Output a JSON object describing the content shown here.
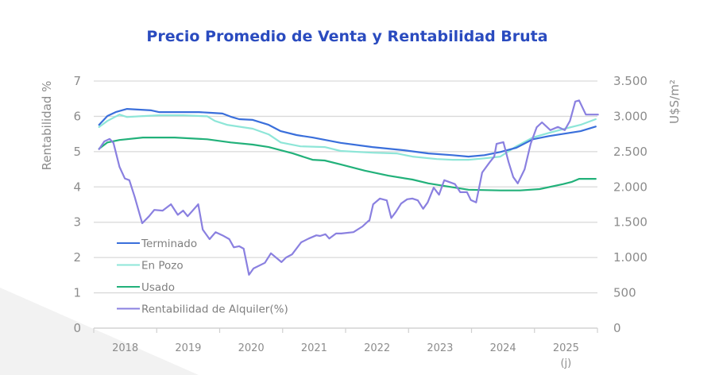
{
  "chart_data": {
    "type": "line",
    "title": "Precio Promedio de Venta y Rentabilidad Bruta",
    "xlabel": "",
    "x_ticks": [
      "2018",
      "2019",
      "2020",
      "2021",
      "2022",
      "2023",
      "2024",
      "2025"
    ],
    "x_tick_suffix_last": "(j)",
    "xlim": [
      2018.0,
      2024.65
    ],
    "y_left": {
      "label": "Rentabilidad %",
      "ticks": [
        "0",
        "1",
        "2",
        "3",
        "4",
        "5",
        "6",
        "7"
      ],
      "ylim": [
        0,
        7
      ]
    },
    "y_right": {
      "label": "U$S/m²",
      "ticks": [
        "0",
        "500",
        "1.000",
        "1.500",
        "2.000",
        "2.500",
        "3.000",
        "3.500"
      ],
      "ylim": [
        0,
        3500
      ]
    },
    "grid": true,
    "legend_position": "bottom-left",
    "series": [
      {
        "name": "Terminado",
        "axis": "right",
        "color": "#3a6fdb",
        "x": [
          2018.07,
          2018.18,
          2018.29,
          2018.44,
          2018.76,
          2018.86,
          2019.39,
          2019.55,
          2019.7,
          2019.81,
          2019.92,
          2020.1,
          2020.31,
          2020.47,
          2020.68,
          2020.89,
          2021.26,
          2021.68,
          2022.1,
          2022.42,
          2022.74,
          2022.95,
          2023.16,
          2023.37,
          2023.58,
          2023.8,
          2024.01,
          2024.22,
          2024.43,
          2024.63
        ],
        "y": [
          2880,
          3005,
          3060,
          3105,
          3085,
          3060,
          3060,
          3050,
          3040,
          2995,
          2960,
          2950,
          2880,
          2790,
          2735,
          2700,
          2625,
          2565,
          2520,
          2475,
          2450,
          2430,
          2450,
          2495,
          2555,
          2675,
          2720,
          2755,
          2790,
          2855
        ]
      },
      {
        "name": "En Pozo",
        "axis": "right",
        "color": "#8ee6d8",
        "x": [
          2018.07,
          2018.18,
          2018.34,
          2018.44,
          2018.6,
          2018.86,
          2019.18,
          2019.5,
          2019.6,
          2019.76,
          2020.1,
          2020.31,
          2020.47,
          2020.73,
          2021.05,
          2021.26,
          2021.68,
          2022.0,
          2022.21,
          2022.53,
          2022.74,
          2022.95,
          2023.16,
          2023.37,
          2023.58,
          2023.8,
          2024.01,
          2024.22,
          2024.43,
          2024.63
        ],
        "y": [
          2850,
          2935,
          3025,
          2990,
          3000,
          3015,
          3015,
          3000,
          2935,
          2880,
          2825,
          2745,
          2630,
          2575,
          2565,
          2510,
          2485,
          2475,
          2430,
          2395,
          2385,
          2385,
          2405,
          2430,
          2575,
          2700,
          2765,
          2825,
          2880,
          2960
        ]
      },
      {
        "name": "Usado",
        "axis": "right",
        "color": "#22b17a",
        "x": [
          2018.07,
          2018.18,
          2018.34,
          2018.65,
          2019.07,
          2019.5,
          2019.81,
          2020.1,
          2020.31,
          2020.63,
          2020.89,
          2021.05,
          2021.26,
          2021.58,
          2021.89,
          2022.21,
          2022.42,
          2022.74,
          2022.95,
          2023.37,
          2023.63,
          2023.89,
          2024.2,
          2024.31,
          2024.41,
          2024.52,
          2024.63
        ],
        "y": [
          2540,
          2630,
          2665,
          2700,
          2700,
          2675,
          2630,
          2600,
          2565,
          2475,
          2385,
          2375,
          2320,
          2230,
          2160,
          2105,
          2050,
          1995,
          1960,
          1950,
          1950,
          1970,
          2040,
          2070,
          2115,
          2115,
          2115
        ]
      },
      {
        "name": "Rentabilidad de Alquiler(%)",
        "axis": "left",
        "color": "#8a80e0",
        "x": [
          2018.07,
          2018.14,
          2018.21,
          2018.26,
          2018.34,
          2018.41,
          2018.47,
          2018.54,
          2018.64,
          2018.73,
          2018.8,
          2018.91,
          2019.02,
          2019.11,
          2019.18,
          2019.24,
          2019.38,
          2019.44,
          2019.53,
          2019.61,
          2019.7,
          2019.79,
          2019.85,
          2019.92,
          2019.98,
          2020.05,
          2020.11,
          2020.26,
          2020.34,
          2020.48,
          2020.54,
          2020.62,
          2020.74,
          2020.84,
          2020.94,
          2020.99,
          2021.06,
          2021.11,
          2021.2,
          2021.27,
          2021.43,
          2021.55,
          2021.63,
          2021.64,
          2021.69,
          2021.78,
          2021.87,
          2021.93,
          2021.99,
          2022.06,
          2022.14,
          2022.21,
          2022.28,
          2022.35,
          2022.41,
          2022.49,
          2022.56,
          2022.63,
          2022.77,
          2022.84,
          2022.93,
          2022.98,
          2023.05,
          2023.13,
          2023.23,
          2023.29,
          2023.32,
          2023.41,
          2023.48,
          2023.54,
          2023.6,
          2023.69,
          2023.77,
          2023.85,
          2023.92,
          2024.03,
          2024.13,
          2024.22,
          2024.29,
          2024.36,
          2024.41,
          2024.5,
          2024.59,
          2024.66
        ],
        "y": [
          5.07,
          5.29,
          5.36,
          5.25,
          4.57,
          4.24,
          4.19,
          3.72,
          2.97,
          3.17,
          3.35,
          3.33,
          3.51,
          3.21,
          3.33,
          3.17,
          3.51,
          2.79,
          2.52,
          2.72,
          2.63,
          2.52,
          2.29,
          2.32,
          2.25,
          1.51,
          1.69,
          1.85,
          2.12,
          1.87,
          2.0,
          2.09,
          2.43,
          2.54,
          2.63,
          2.61,
          2.66,
          2.54,
          2.68,
          2.68,
          2.72,
          2.88,
          3.04,
          3.04,
          3.51,
          3.67,
          3.62,
          3.12,
          3.29,
          3.53,
          3.65,
          3.67,
          3.62,
          3.38,
          3.56,
          3.98,
          3.78,
          4.19,
          4.08,
          3.85,
          3.85,
          3.63,
          3.56,
          4.41,
          4.7,
          4.86,
          5.22,
          5.27,
          4.7,
          4.28,
          4.1,
          4.5,
          5.22,
          5.69,
          5.83,
          5.61,
          5.7,
          5.61,
          5.87,
          6.42,
          6.45,
          6.05,
          6.05,
          6.05
        ]
      }
    ]
  }
}
